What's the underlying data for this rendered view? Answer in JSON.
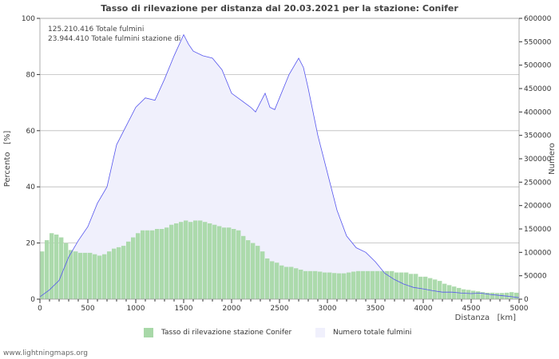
{
  "chart_data": {
    "type": "bar",
    "title": "Tasso di rilevazione per distanza dal 20.03.2021 per la stazione: Conifer",
    "xlabel": "Distanza   [km]",
    "ylabel": "Percento   [%]",
    "y2label": "Numero",
    "xlim": [
      0,
      5000
    ],
    "ylim": [
      0,
      100
    ],
    "y2lim": [
      0,
      600000
    ],
    "xticks": [
      "0",
      "500",
      "1000",
      "1500",
      "2000",
      "2500",
      "3000",
      "3500",
      "4000",
      "4500",
      "5000"
    ],
    "yticks": [
      "0",
      "20",
      "40",
      "60",
      "80",
      "100"
    ],
    "y2ticks": [
      "0",
      "50000",
      "100000",
      "150000",
      "200000",
      "250000",
      "300000",
      "350000",
      "400000",
      "450000",
      "500000",
      "550000",
      "600000"
    ],
    "annotations": [
      "125.210.416 Totale fulmini",
      "23.944.410 Totale fulmini stazione di"
    ],
    "series": [
      {
        "name": "Tasso di rilevazione stazione Conifer",
        "type": "bar",
        "axis": "left",
        "color": "#a8d8a8",
        "step": 50,
        "values": [
          17,
          21,
          23.5,
          23,
          22,
          20,
          17.5,
          17,
          16.5,
          16.5,
          16.5,
          16,
          15.5,
          16,
          17,
          18,
          18.5,
          19,
          20.5,
          22,
          23.5,
          24.5,
          24.5,
          24.5,
          25,
          25,
          25.5,
          26.5,
          27,
          27.5,
          28,
          27.5,
          28,
          28,
          27.5,
          27,
          26.5,
          26,
          25.5,
          25.5,
          25,
          24.5,
          22.5,
          21,
          20,
          19,
          17,
          14.5,
          13.5,
          13,
          12,
          11.5,
          11.5,
          11,
          10.5,
          10,
          10,
          10,
          9.8,
          9.5,
          9.5,
          9.3,
          9.2,
          9.2,
          9.5,
          9.8,
          10,
          10,
          10,
          10,
          10,
          10,
          10,
          10,
          9.5,
          9.5,
          9.5,
          9,
          9,
          8,
          8,
          7.5,
          7,
          6.5,
          5.5,
          5,
          4.5,
          4,
          3.5,
          3.3,
          3,
          2.8,
          2.5,
          2.3,
          2.3,
          2.2,
          2.2,
          2.3,
          2.5,
          2.3
        ]
      },
      {
        "name": "Numero totale fulmini",
        "type": "area",
        "axis": "right",
        "color": "#5555ee",
        "fill": "#f0f0fc",
        "x": [
          0,
          100,
          200,
          300,
          400,
          500,
          600,
          700,
          800,
          900,
          1000,
          1100,
          1200,
          1300,
          1400,
          1500,
          1550,
          1600,
          1700,
          1800,
          1900,
          2000,
          2100,
          2200,
          2250,
          2300,
          2350,
          2400,
          2450,
          2500,
          2600,
          2700,
          2750,
          2800,
          2900,
          3000,
          3100,
          3200,
          3300,
          3400,
          3500,
          3600,
          3700,
          3800,
          3900,
          4000,
          4100,
          4200,
          4300,
          4400,
          4500,
          4600,
          4700,
          4800,
          4900,
          5000
        ],
        "values": [
          5000,
          20000,
          40000,
          90000,
          125000,
          155000,
          205000,
          240000,
          330000,
          370000,
          410000,
          430000,
          425000,
          470000,
          520000,
          565000,
          545000,
          530000,
          520000,
          515000,
          490000,
          440000,
          425000,
          410000,
          400000,
          420000,
          440000,
          410000,
          405000,
          430000,
          480000,
          515000,
          495000,
          450000,
          350000,
          270000,
          190000,
          135000,
          110000,
          100000,
          80000,
          55000,
          42000,
          32000,
          25000,
          22000,
          18000,
          15000,
          15000,
          13000,
          12000,
          13000,
          10000,
          8000,
          6000,
          3000
        ]
      }
    ]
  },
  "footer": "www.lightningmaps.org"
}
